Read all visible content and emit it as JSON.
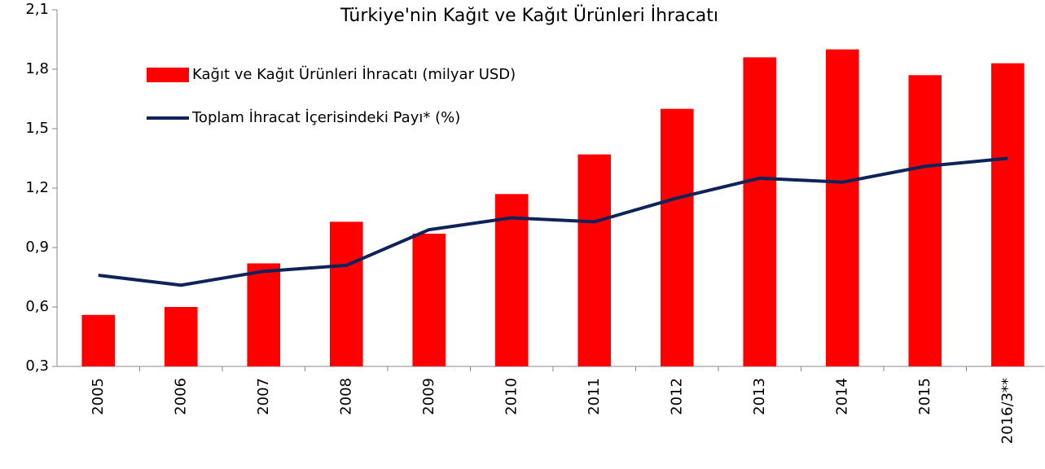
{
  "chart_data": {
    "type": "bar",
    "title": "Türkiye'nin Kağıt ve Kağıt Ürünleri İhracatı",
    "categories": [
      "2005",
      "2006",
      "2007",
      "2008",
      "2009",
      "2010",
      "2011",
      "2012",
      "2013",
      "2014",
      "2015",
      "2016/3**"
    ],
    "series": [
      {
        "name": "Kağıt ve Kağıt Ürünleri İhracatı (milyar USD)",
        "type": "bar",
        "color": "#ff0000",
        "values": [
          0.56,
          0.6,
          0.82,
          1.03,
          0.97,
          1.17,
          1.37,
          1.6,
          1.86,
          1.9,
          1.77,
          1.83
        ]
      },
      {
        "name": "Toplam İhracat İçerisindeki Payı* (%)",
        "type": "line",
        "color": "#0d2359",
        "values": [
          0.76,
          0.71,
          0.78,
          0.81,
          0.99,
          1.05,
          1.03,
          1.15,
          1.25,
          1.23,
          1.31,
          1.35
        ]
      }
    ],
    "ylim": [
      0.3,
      2.1
    ],
    "yticks": [
      {
        "value": 0.3,
        "label": "0,3"
      },
      {
        "value": 0.6,
        "label": "0,6"
      },
      {
        "value": 0.9,
        "label": "0,9"
      },
      {
        "value": 1.2,
        "label": "1,2"
      },
      {
        "value": 1.5,
        "label": "1,5"
      },
      {
        "value": 1.8,
        "label": "1,8"
      },
      {
        "value": 2.1,
        "label": "2,1"
      }
    ],
    "grid": false,
    "legend": "upper left"
  }
}
